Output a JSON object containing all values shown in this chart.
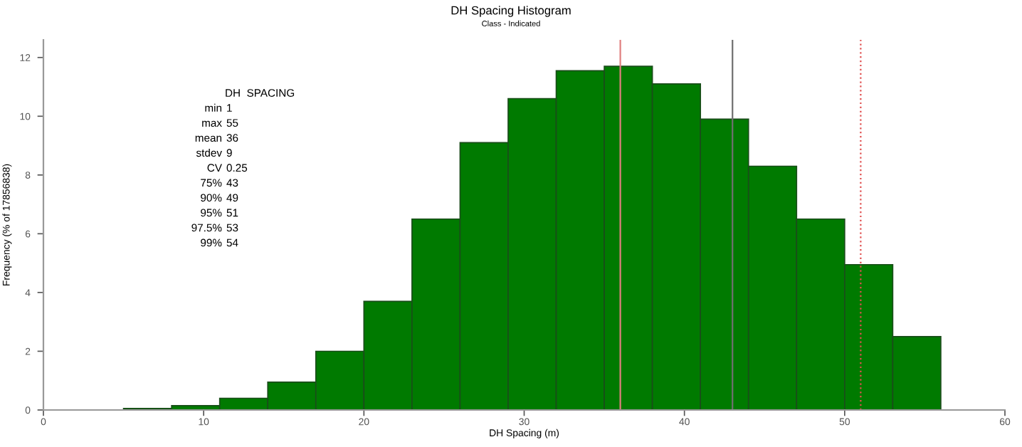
{
  "chart_data": {
    "type": "histogram",
    "title": "DH Spacing Histogram",
    "subtitle": "Class - Indicated",
    "xlabel": "DH Spacing (m)",
    "ylabel": "Frequency (% of 17856838)",
    "bins": [
      5,
      8,
      11,
      14,
      17,
      20,
      23,
      26,
      29,
      32,
      35,
      38,
      41,
      44,
      47,
      50,
      53,
      56
    ],
    "values": [
      0.05,
      0.15,
      0.4,
      0.95,
      2.0,
      3.7,
      6.5,
      9.1,
      10.6,
      11.55,
      11.7,
      11.1,
      9.9,
      8.3,
      6.5,
      4.95,
      2.5
    ],
    "color": "#007a00",
    "xlim": [
      0,
      60
    ],
    "xticks": [
      0,
      10,
      20,
      30,
      40,
      50,
      60
    ],
    "ylim": [
      0,
      12.6
    ],
    "yticks": [
      0,
      2,
      4,
      6,
      8,
      10,
      12
    ],
    "grid": false,
    "ref_lines": [
      {
        "axis": "x",
        "value": 36,
        "color": "#e08080",
        "line_style": "solid"
      },
      {
        "axis": "x",
        "value": 43,
        "color": "#707070",
        "line_style": "solid"
      },
      {
        "axis": "x",
        "value": 51,
        "color": "#e05050",
        "line_style": "dotted"
      }
    ],
    "annotations": [
      "DH  SPACING",
      "min  1",
      "max  55",
      "mean  36",
      "stdev  9",
      "CV  0.25",
      "75%  43",
      "90%  49",
      "95%  51",
      "97.5%  53",
      "99%  54"
    ]
  }
}
